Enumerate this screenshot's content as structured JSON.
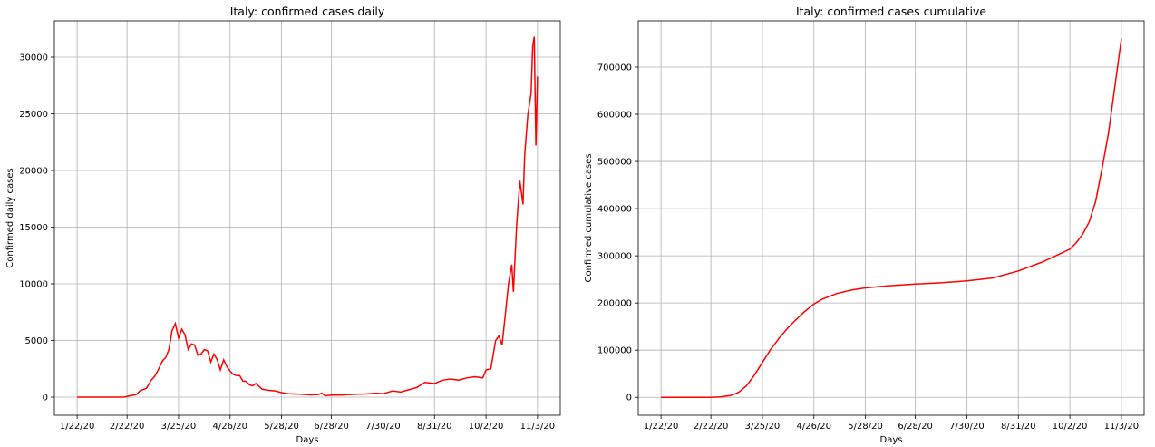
{
  "chart_data": [
    {
      "type": "line",
      "title": "Italy: confirmed cases daily",
      "xlabel": "Days",
      "ylabel": "Confirmed daily cases",
      "xticks": [
        "1/22/20",
        "2/22/20",
        "3/25/20",
        "4/26/20",
        "5/28/20",
        "6/28/20",
        "7/30/20",
        "8/31/20",
        "10/2/20",
        "11/3/20"
      ],
      "yticks": [
        "0",
        "5000",
        "10000",
        "15000",
        "20000",
        "25000",
        "30000"
      ],
      "ylim": [
        -1600,
        33200
      ],
      "grid": true,
      "color": "#ff0000",
      "x": [
        "1/22/20",
        "2/20/20",
        "2/24/20",
        "2/28/20",
        "3/1/20",
        "3/5/20",
        "3/8/20",
        "3/10/20",
        "3/12/20",
        "3/13/20",
        "3/15/20",
        "3/17/20",
        "3/19/20",
        "3/21/20",
        "3/23/20",
        "3/25/20",
        "3/27/20",
        "3/29/20",
        "3/31/20",
        "4/2/20",
        "4/4/20",
        "4/6/20",
        "4/8/20",
        "4/10/20",
        "4/12/20",
        "4/14/20",
        "4/16/20",
        "4/18/20",
        "4/20/20",
        "4/22/20",
        "4/24/20",
        "4/26/20",
        "4/28/20",
        "4/30/20",
        "5/2/20",
        "5/4/20",
        "5/6/20",
        "5/8/20",
        "5/10/20",
        "5/12/20",
        "5/14/20",
        "5/16/20",
        "5/18/20",
        "5/20/20",
        "5/24/20",
        "5/28/20",
        "6/1/20",
        "6/5/20",
        "6/10/20",
        "6/15/20",
        "6/20/20",
        "6/22/20",
        "6/24/20",
        "6/28/20",
        "7/5/20",
        "7/12/20",
        "7/19/20",
        "7/26/20",
        "7/30/20",
        "8/5/20",
        "8/10/20",
        "8/15/20",
        "8/20/20",
        "8/25/20",
        "8/31/20",
        "9/5/20",
        "9/10/20",
        "9/15/20",
        "9/20/20",
        "9/25/20",
        "9/30/20",
        "10/2/20",
        "10/5/20",
        "10/8/20",
        "10/10/20",
        "10/12/20",
        "10/14/20",
        "10/16/20",
        "10/18/20",
        "10/19/20",
        "10/21/20",
        "10/23/20",
        "10/25/20",
        "10/26/20",
        "10/28/20",
        "10/30/20",
        "10/31/20",
        "11/1/20",
        "11/2/20",
        "11/3/20"
      ],
      "values": [
        0,
        0,
        130,
        240,
        570,
        780,
        1500,
        1800,
        2300,
        2600,
        3200,
        3500,
        4200,
        5900,
        6500,
        5200,
        6000,
        5500,
        4200,
        4700,
        4600,
        3700,
        3800,
        4200,
        4100,
        3100,
        3800,
        3300,
        2400,
        3300,
        2700,
        2300,
        2000,
        1900,
        1900,
        1400,
        1400,
        1100,
        1000,
        1200,
        950,
        700,
        650,
        600,
        550,
        400,
        300,
        280,
        250,
        200,
        230,
        350,
        120,
        180,
        190,
        250,
        280,
        350,
        300,
        550,
        450,
        650,
        850,
        1300,
        1200,
        1500,
        1600,
        1500,
        1700,
        1800,
        1700,
        2400,
        2500,
        5000,
        5400,
        4600,
        7300,
        10000,
        11700,
        9300,
        15100,
        19100,
        17000,
        21300,
        24900,
        26800,
        31000,
        31800,
        22200,
        28300
      ]
    },
    {
      "type": "line",
      "title": "Italy: confirmed cases cumulative",
      "xlabel": "Days",
      "ylabel": "Confirmed cumulative cases",
      "xticks": [
        "1/22/20",
        "2/22/20",
        "3/25/20",
        "4/26/20",
        "5/28/20",
        "6/28/20",
        "7/30/20",
        "8/31/20",
        "10/2/20",
        "11/3/20"
      ],
      "yticks": [
        "0",
        "100000",
        "200000",
        "300000",
        "400000",
        "500000",
        "600000",
        "700000"
      ],
      "ylim": [
        -38000,
        798000
      ],
      "grid": true,
      "color": "#ff0000",
      "x": [
        "1/22/20",
        "2/22/20",
        "2/28/20",
        "3/5/20",
        "3/10/20",
        "3/15/20",
        "3/20/20",
        "3/25/20",
        "3/30/20",
        "4/5/20",
        "4/10/20",
        "4/15/20",
        "4/20/20",
        "4/26/20",
        "5/1/20",
        "5/10/20",
        "5/20/20",
        "5/28/20",
        "6/10/20",
        "6/28/20",
        "7/15/20",
        "7/30/20",
        "8/15/20",
        "8/31/20",
        "9/15/20",
        "10/2/20",
        "10/6/20",
        "10/10/20",
        "10/14/20",
        "10/18/20",
        "10/22/20",
        "10/26/20",
        "10/30/20",
        "11/3/20"
      ],
      "values": [
        0,
        0,
        900,
        3800,
        10000,
        24000,
        47000,
        74000,
        101000,
        128000,
        148000,
        165000,
        181000,
        198000,
        208000,
        220000,
        228000,
        232000,
        236000,
        240000,
        243000,
        247000,
        253000,
        268000,
        287000,
        314000,
        328000,
        346000,
        372000,
        415000,
        485000,
        560000,
        660000,
        760000
      ]
    }
  ]
}
